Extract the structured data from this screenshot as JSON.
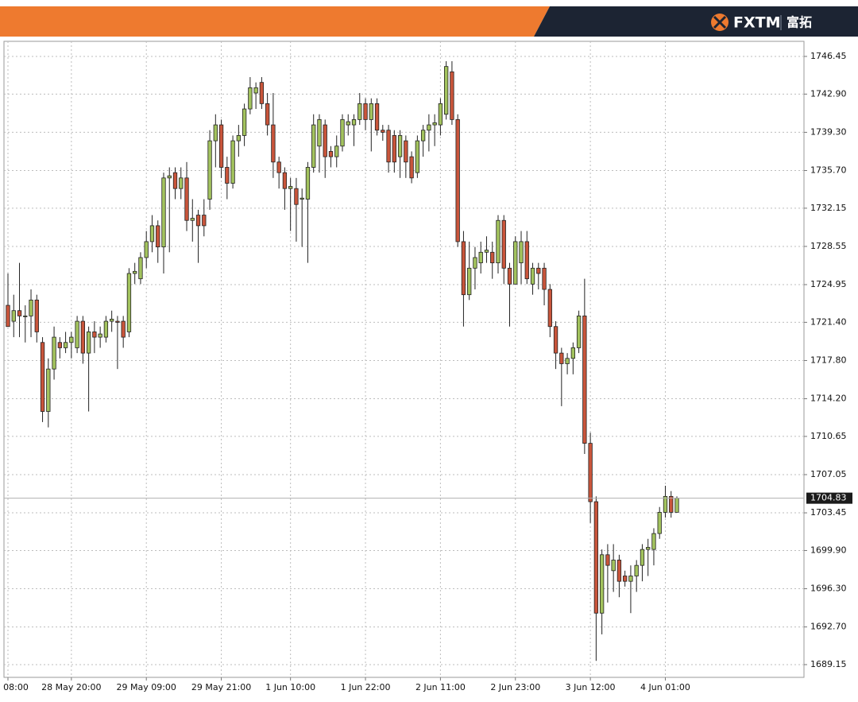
{
  "header": {
    "brand": "FXTM",
    "brand_cn": "富拓"
  },
  "chart_data": {
    "type": "candlestick",
    "categories": [
      "08:00",
      null,
      null,
      null,
      null,
      null,
      null,
      null,
      null,
      null,
      null,
      "28 May 20:00",
      null,
      null,
      null,
      null,
      null,
      null,
      null,
      null,
      null,
      null,
      null,
      null,
      "29 May 09:00",
      null,
      null,
      null,
      null,
      null,
      null,
      null,
      null,
      null,
      null,
      null,
      null,
      "29 May 21:00",
      null,
      null,
      null,
      null,
      null,
      null,
      null,
      null,
      null,
      null,
      null,
      "1 Jun 10:00",
      null,
      null,
      null,
      null,
      null,
      null,
      null,
      null,
      null,
      null,
      null,
      null,
      "1 Jun 22:00",
      null,
      null,
      null,
      null,
      null,
      null,
      null,
      null,
      null,
      null,
      null,
      null,
      "2 Jun 11:00",
      null,
      null,
      null,
      null,
      null,
      null,
      null,
      null,
      null,
      null,
      null,
      null,
      "2 Jun 23:00",
      null,
      null,
      null,
      null,
      null,
      null,
      null,
      null,
      null,
      null,
      null,
      null,
      "3 Jun 12:00",
      null,
      null,
      null,
      null,
      null,
      null,
      null,
      null,
      null,
      null,
      null,
      null,
      "4 Jun 01:00",
      null,
      null
    ],
    "open": [
      1723,
      1721.5,
      1722.5,
      1722,
      1722,
      1723.5,
      1719.5,
      1713,
      1717,
      1719.5,
      1719,
      1719.5,
      1719,
      1721.5,
      1718.5,
      1720.5,
      1720,
      1720,
      1721.5,
      1721.5,
      1721.5,
      1720.5,
      1726,
      1725.5,
      1727.5,
      1729,
      1730.5,
      1728.5,
      1735,
      1735.5,
      1734,
      1735,
      1731,
      1731.5,
      1731.5,
      1733,
      1738.5,
      1740,
      1736,
      1734.5,
      1738.5,
      1739,
      1741.5,
      1743,
      1744,
      1742,
      1740,
      1736.5,
      1735.5,
      1734,
      1734,
      1733,
      1733,
      1736,
      1738,
      1740,
      1737.5,
      1737,
      1738,
      1740,
      1740,
      1740.5,
      1742,
      1740.5,
      1742,
      1739.5,
      1739.5,
      1739,
      1737,
      1738.5,
      1737,
      1735.5,
      1738.5,
      1739.5,
      1740,
      1740,
      1741,
      1745,
      1740.5,
      1729,
      1724,
      1726.5,
      1727,
      1728,
      1728,
      1727,
      1731,
      1726.5,
      1725,
      1727,
      1729,
      1725,
      1726.5,
      1726.5,
      1724.5,
      1721,
      1718.5,
      1717.5,
      1718,
      1719,
      1722,
      1710,
      1704.5,
      1694,
      1699.5,
      1698,
      1699,
      1697.5,
      1697,
      1697.5,
      1698.5,
      1700,
      1700,
      1701.5,
      1703.5,
      1705,
      1703.5
    ],
    "high": [
      1726,
      1724,
      1727,
      1723,
      1724.5,
      1724,
      1720,
      1718,
      1721,
      1720,
      1720.5,
      1720.5,
      1722,
      1722,
      1721,
      1721.5,
      1721,
      1722,
      1722.5,
      1722,
      1722,
      1726.5,
      1727,
      1728,
      1730,
      1731.5,
      1731,
      1735.5,
      1736,
      1736,
      1736,
      1736.5,
      1733,
      1732,
      1733,
      1739.5,
      1741,
      1740.5,
      1737,
      1739,
      1740,
      1742,
      1744.5,
      1744,
      1744.5,
      1743,
      1743,
      1737,
      1736,
      1735,
      1735,
      1734,
      1736.5,
      1741,
      1741,
      1740.5,
      1738,
      1739,
      1741,
      1741,
      1741,
      1743,
      1742.5,
      1742.5,
      1742.5,
      1740,
      1740,
      1739.5,
      1739.5,
      1739,
      1737.5,
      1739,
      1740,
      1741,
      1741,
      1742.5,
      1746,
      1746,
      1741,
      1730,
      1729,
      1728.5,
      1729,
      1729.5,
      1729,
      1731.5,
      1731.5,
      1727,
      1729.5,
      1730,
      1730,
      1727,
      1727,
      1727,
      1725,
      1721.5,
      1719,
      1718.5,
      1719.5,
      1722.5,
      1725.5,
      1711,
      1705,
      1700,
      1700.5,
      1700.5,
      1699.5,
      1698,
      1698.5,
      1699,
      1700.5,
      1701,
      1702,
      1704,
      1706,
      1705.5,
      1705
    ],
    "low": [
      1721,
      1720,
      1720,
      1719.5,
      1720,
      1719.5,
      1712,
      1711.5,
      1716,
      1718,
      1718.5,
      1718,
      1718.5,
      1717.5,
      1713,
      1718.5,
      1719,
      1719.5,
      1720.5,
      1717,
      1719,
      1720,
      1725,
      1725,
      1726.5,
      1728,
      1727,
      1726,
      1728,
      1733,
      1733,
      1730,
      1729,
      1727,
      1729.5,
      1732,
      1736,
      1735,
      1733,
      1734,
      1737,
      1738,
      1741,
      1741.5,
      1741.5,
      1739,
      1735,
      1734,
      1732,
      1730,
      1729,
      1728.5,
      1727,
      1735.5,
      1735.5,
      1735,
      1736,
      1736,
      1737.5,
      1739,
      1738,
      1740,
      1739.5,
      1737.5,
      1739,
      1738.5,
      1735.5,
      1735.5,
      1735,
      1735,
      1734.5,
      1735,
      1737,
      1737.5,
      1738,
      1739,
      1740.5,
      1740,
      1728.5,
      1721,
      1723.5,
      1724.5,
      1726,
      1727,
      1725.5,
      1726,
      1725,
      1721,
      1725,
      1725,
      1725,
      1724,
      1724.5,
      1723,
      1720,
      1717,
      1713.5,
      1716.5,
      1716.5,
      1718.5,
      1709,
      1702.5,
      1689.5,
      1692,
      1695,
      1696,
      1695.5,
      1696.5,
      1694,
      1696,
      1697,
      1697.5,
      1698.5,
      1701,
      1703,
      1703,
      1703.5
    ],
    "close": [
      1721,
      1722.5,
      1722,
      1722,
      1723.5,
      1720.5,
      1713,
      1717,
      1720,
      1719,
      1719.5,
      1720,
      1721.5,
      1718.5,
      1720.5,
      1720,
      1720.3,
      1721.5,
      1721.7,
      1721.4,
      1720,
      1726,
      1726.2,
      1727.5,
      1729,
      1730.5,
      1728.5,
      1735,
      1735.2,
      1734,
      1735,
      1731,
      1731.2,
      1730.5,
      1730.5,
      1738.5,
      1740,
      1736,
      1734.5,
      1738.5,
      1739,
      1741.5,
      1743.5,
      1743.5,
      1742,
      1740,
      1736.5,
      1735.5,
      1734,
      1734.2,
      1732.5,
      1733.1,
      1736,
      1740,
      1740.5,
      1737,
      1737,
      1738,
      1740.5,
      1740.3,
      1740.5,
      1742,
      1740.5,
      1742,
      1739.5,
      1739.3,
      1736.5,
      1736.5,
      1739,
      1736.5,
      1735,
      1738.5,
      1739.5,
      1740,
      1740.2,
      1742,
      1745.5,
      1740.5,
      1729,
      1724,
      1726.5,
      1727.5,
      1728,
      1728.2,
      1727,
      1731,
      1726.5,
      1725,
      1729,
      1729,
      1725.5,
      1726.5,
      1726,
      1724.5,
      1721,
      1718.5,
      1717.5,
      1718,
      1719,
      1722,
      1710,
      1704.5,
      1694,
      1699.5,
      1698.5,
      1699,
      1697,
      1697,
      1697.5,
      1698.5,
      1700,
      1700.2,
      1701.5,
      1703.5,
      1705,
      1703.5,
      1704.83
    ],
    "up_color": "#a3c35e",
    "down_color": "#c9553b",
    "ylim": [
      1687.95,
      1747.87
    ],
    "yticks": [
      1746.45,
      {
        "value": 1742.9,
        "label": "1742.90"
      },
      {
        "value": 1739.3,
        "label": "1739.30"
      },
      {
        "value": 1735.7,
        "label": "1735.70"
      },
      1732.15,
      1728.55,
      1724.95,
      {
        "value": 1721.4,
        "label": "1721.40"
      },
      {
        "value": 1717.8,
        "label": "1717.80"
      },
      {
        "value": 1714.2,
        "label": "1714.20"
      },
      1710.65,
      1707.05,
      1703.45,
      {
        "value": 1699.9,
        "label": "1699.90"
      },
      {
        "value": 1696.3,
        "label": "1696.30"
      },
      {
        "value": 1692.7,
        "label": "1692.70"
      },
      1689.15
    ],
    "last_price": 1704.83,
    "grid": true
  }
}
